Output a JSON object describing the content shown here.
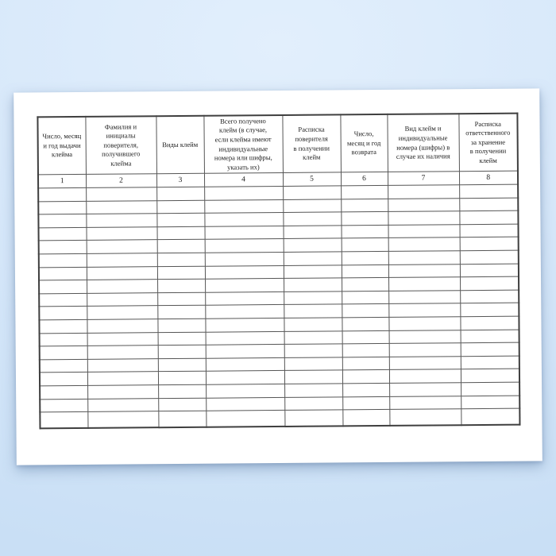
{
  "document_kind": "blank-register-form",
  "colors": {
    "background": "#d7e8fa",
    "paper": "#ffffff",
    "grid_line": "#565656",
    "text": "#1d1d1d"
  },
  "table": {
    "columns": [
      {
        "number": "1",
        "title": "Число, месяц\nи год выдачи\nклейма"
      },
      {
        "number": "2",
        "title": "Фамилия и\nинициалы\nповерителя,\nполучившего\nклейма"
      },
      {
        "number": "3",
        "title": "Виды клейм"
      },
      {
        "number": "4",
        "title": "Всего получено\nклейм (в случае,\nесли клейма имеют\nиндивидуальные\nномера или шифры,\nуказать их)"
      },
      {
        "number": "5",
        "title": "Расписка\nповерителя\nв получении\nклейм"
      },
      {
        "number": "6",
        "title": "Число,\nмесяц и год\nвозврата"
      },
      {
        "number": "7",
        "title": "Вид клейм и\nиндивидуальные\nномера (шифры) в\nслучае их наличия"
      },
      {
        "number": "8",
        "title": "Расписка\nответственного\nза хранение\nв получении\nклейм"
      }
    ],
    "empty_row_count": 18,
    "cell_values": []
  }
}
